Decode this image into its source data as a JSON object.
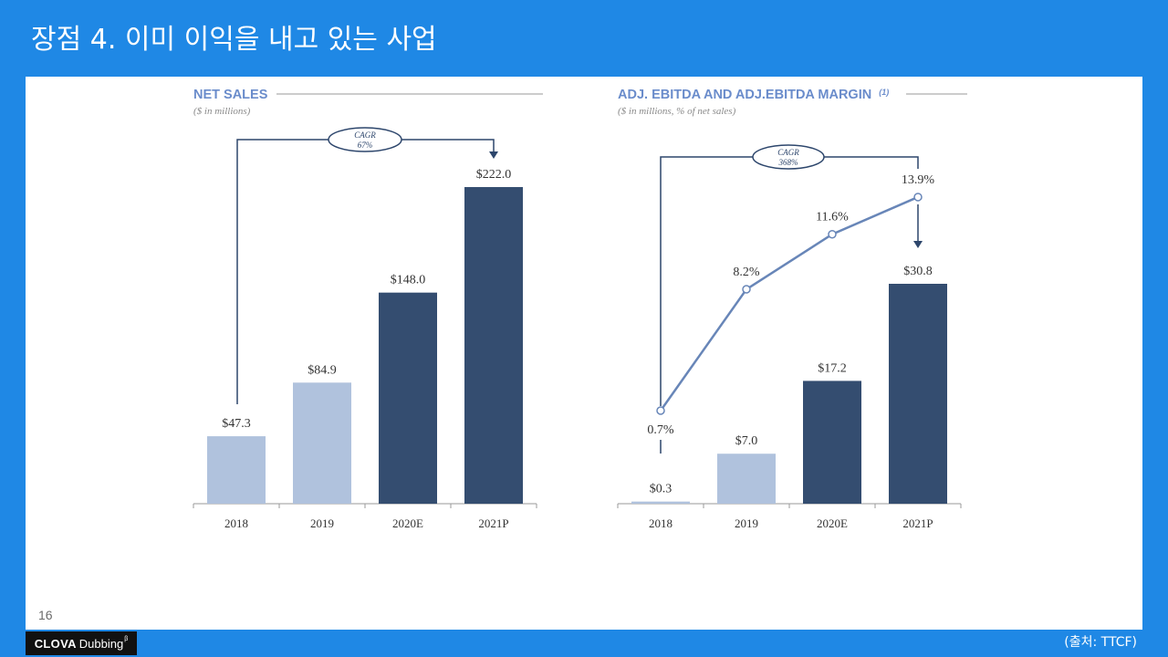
{
  "slide": {
    "title": "장점 4. 이미 이익을 내고 있는 사업",
    "page_number": "16",
    "source": "(출처: TTCF)",
    "logo": {
      "brand": "CLOVA",
      "product": "Dubbing",
      "mark": "β"
    }
  },
  "colors": {
    "background": "#1f88e5",
    "panel": "#ffffff",
    "chart_title": "#6a8ccb",
    "bar_light": "#b0c2dd",
    "bar_dark": "#344d70",
    "margin_line": "#6886b8",
    "bracket": "#2d466c"
  },
  "chart_data": [
    {
      "type": "bar",
      "title": "NET SALES",
      "subtitle": "($ in millions)",
      "categories": [
        "2018",
        "2019",
        "2020E",
        "2021P"
      ],
      "values": [
        47.3,
        84.9,
        148.0,
        222.0
      ],
      "labels": [
        "$47.3",
        "$84.9",
        "$148.0",
        "$222.0"
      ],
      "bar_colors": [
        "#b0c2dd",
        "#b0c2dd",
        "#344d70",
        "#344d70"
      ],
      "annotation": {
        "label": "CAGR",
        "value": "67%"
      },
      "grid": false
    },
    {
      "type": "bar",
      "title": "ADJ. EBITDA AND ADJ.EBITDA MARGIN",
      "title_note": "(1)",
      "subtitle": "($ in millions, % of net sales)",
      "categories": [
        "2018",
        "2019",
        "2020E",
        "2021P"
      ],
      "series": [
        {
          "type": "bar",
          "values": [
            0.3,
            7.0,
            17.2,
            30.8
          ],
          "labels": [
            "$0.3",
            "$7.0",
            "$17.2",
            "$30.8"
          ],
          "bar_colors": [
            "#b0c2dd",
            "#b0c2dd",
            "#344d70",
            "#344d70"
          ]
        },
        {
          "type": "line",
          "values": [
            0.7,
            8.2,
            11.6,
            13.9
          ],
          "labels": [
            "0.7%",
            "8.2%",
            "11.6%",
            "13.9%"
          ],
          "color": "#6886b8"
        }
      ],
      "annotation": {
        "label": "CAGR",
        "value": "368%"
      },
      "grid": false
    }
  ]
}
